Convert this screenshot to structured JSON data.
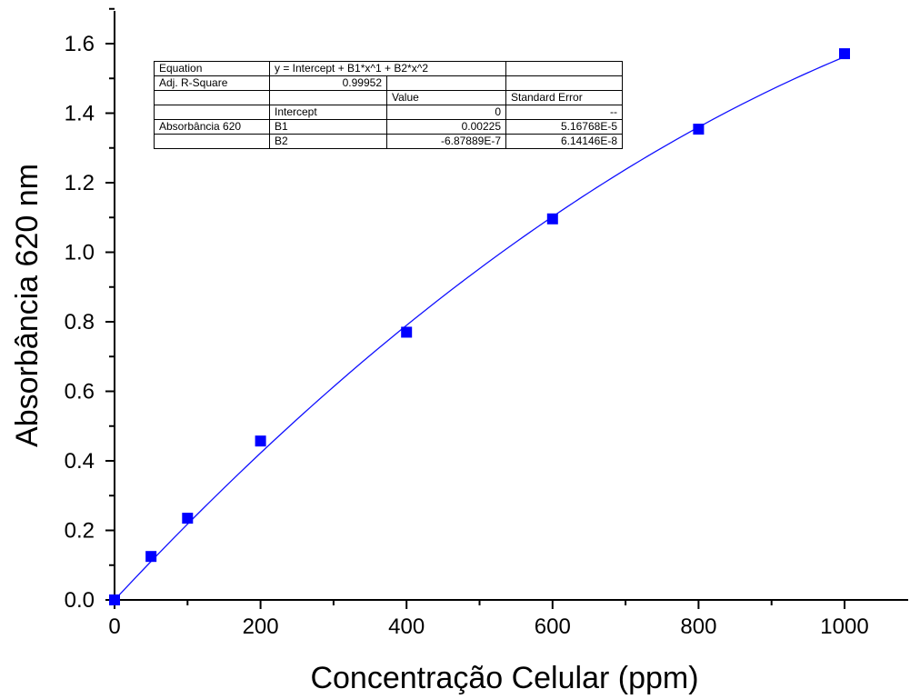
{
  "chart_data": {
    "type": "scatter",
    "xlabel": "Concentração Celular (ppm)",
    "ylabel": "Absorbância 620 nm",
    "xlim": [
      0,
      1100
    ],
    "ylim": [
      0,
      1.7
    ],
    "xticks": [
      0,
      200,
      400,
      600,
      800,
      1000
    ],
    "xtick_labels": [
      "0",
      "200",
      "400",
      "600",
      "800",
      "1000"
    ],
    "yticks": [
      0.0,
      0.2,
      0.4,
      0.6,
      0.8,
      1.0,
      1.2,
      1.4,
      1.6
    ],
    "ytick_labels": [
      "0.0",
      "0.2",
      "0.4",
      "0.6",
      "0.8",
      "1.0",
      "1.2",
      "1.4",
      "1.6"
    ],
    "series": [
      {
        "marker": "square",
        "color": "#0000ff",
        "x": [
          0,
          50,
          100,
          200,
          400,
          600,
          800,
          1000
        ],
        "y": [
          0.0,
          0.125,
          0.235,
          0.457,
          0.77,
          1.096,
          1.354,
          1.571
        ]
      }
    ],
    "fit": {
      "color": "#1010ff",
      "intercept": 0,
      "b1": 0.00225,
      "b2": -6.87889e-07,
      "x_range": [
        0,
        1000
      ]
    },
    "stats_table": {
      "equation_label": "Equation",
      "equation": "y = Intercept + B1*x^1 + B2*x^2",
      "r2_label": "Adj. R-Square",
      "r2_value": "0.99952",
      "value_header": "Value",
      "error_header": "Standard Error",
      "series_label": "Absorbância 620",
      "rows": [
        {
          "param": "Intercept",
          "value": "0",
          "error": "--"
        },
        {
          "param": "B1",
          "value": "0.00225",
          "error": "5.16768E-5"
        },
        {
          "param": "B2",
          "value": "-6.87889E-7",
          "error": "6.14146E-8"
        }
      ]
    }
  }
}
